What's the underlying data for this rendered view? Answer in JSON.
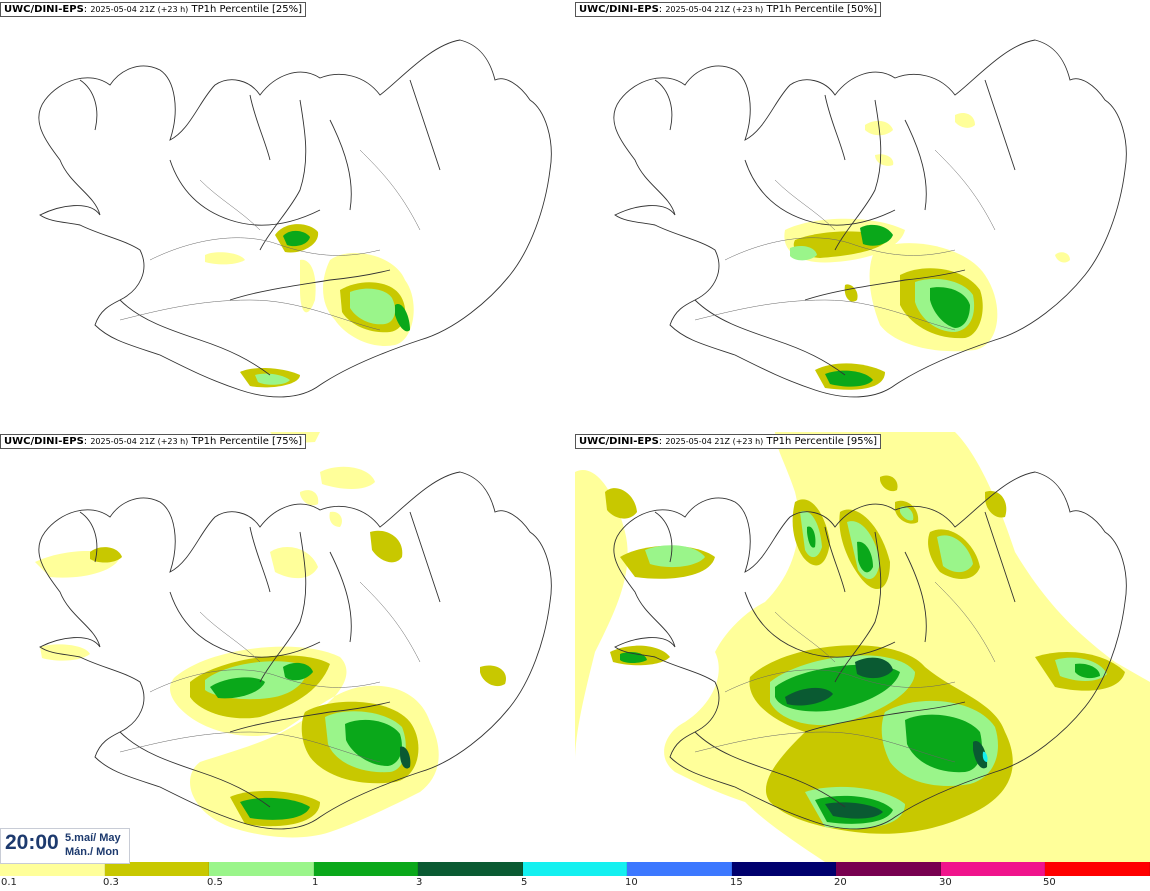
{
  "panels": [
    {
      "prefix": "UWC/DINI-EPS",
      "run": "2025-05-04 21Z (+23 h)",
      "field": "TP1h Percentile [25%]"
    },
    {
      "prefix": "UWC/DINI-EPS",
      "run": "2025-05-04 21Z (+23 h)",
      "field": "TP1h Percentile [50%]"
    },
    {
      "prefix": "UWC/DINI-EPS",
      "run": "2025-05-04 21Z (+23 h)",
      "field": "TP1h Percentile [75%]"
    },
    {
      "prefix": "UWC/DINI-EPS",
      "run": "2025-05-04 21Z (+23 h)",
      "field": "TP1h Percentile [95%]"
    }
  ],
  "clock": {
    "time": "20:00",
    "date_line1": "5.maí/ May",
    "date_line2": "Mán./ Mon"
  },
  "legend": {
    "colors": [
      "#ffff9a",
      "#c8c800",
      "#9af58a",
      "#0aa81a",
      "#0a5a32",
      "#14f0f0",
      "#3c78ff",
      "#00006e",
      "#780050",
      "#f0148c",
      "#ff0000"
    ],
    "ticks": [
      "0.1",
      "0.3",
      "0.5",
      "1",
      "3",
      "5",
      "10",
      "15",
      "20",
      "30",
      "50"
    ]
  },
  "palette": {
    "light_yellow": "#ffff9a",
    "olive": "#c8c800",
    "light_green": "#9af58a",
    "green": "#0aa81a",
    "dark_green": "#0a5a32",
    "coast": "#333333"
  }
}
